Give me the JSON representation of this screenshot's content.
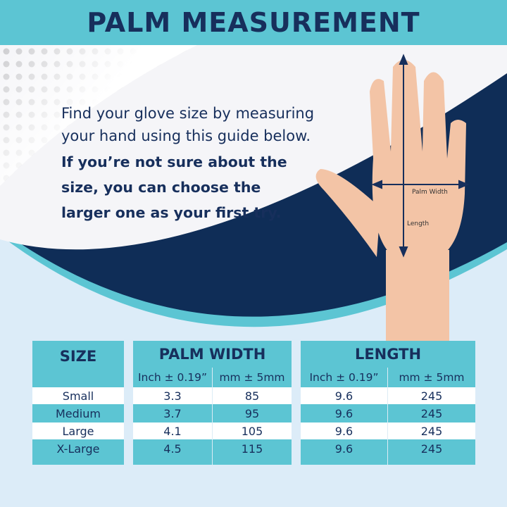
{
  "title": "PALM MEASUREMENT",
  "intro": {
    "line1": "Find your glove size by measuring",
    "line2": "your hand using this guide below.",
    "bold1": "If you’re not sure about the",
    "bold2": "size, you can choose the",
    "bold3": "larger one as your first try."
  },
  "hand_labels": {
    "width": "Palm Width",
    "length": "Length"
  },
  "colors": {
    "teal": "#5cc5d3",
    "navy": "#172f5c",
    "skin": "#f3c4a6"
  },
  "table": {
    "size_header": "SIZE",
    "palm_header": "PALM WIDTH",
    "length_header": "LENGTH",
    "sub": {
      "inch": "Inch ± 0.19”",
      "mm": "mm ± 5mm"
    },
    "rows": [
      {
        "size": "Small",
        "pw_in": "3.3",
        "pw_mm": "85",
        "len_in": "9.6",
        "len_mm": "245"
      },
      {
        "size": "Medium",
        "pw_in": "3.7",
        "pw_mm": "95",
        "len_in": "9.6",
        "len_mm": "245"
      },
      {
        "size": "Large",
        "pw_in": "4.1",
        "pw_mm": "105",
        "len_in": "9.6",
        "len_mm": "245"
      },
      {
        "size": "X-Large",
        "pw_in": "4.5",
        "pw_mm": "115",
        "len_in": "9.6",
        "len_mm": "245"
      }
    ]
  }
}
